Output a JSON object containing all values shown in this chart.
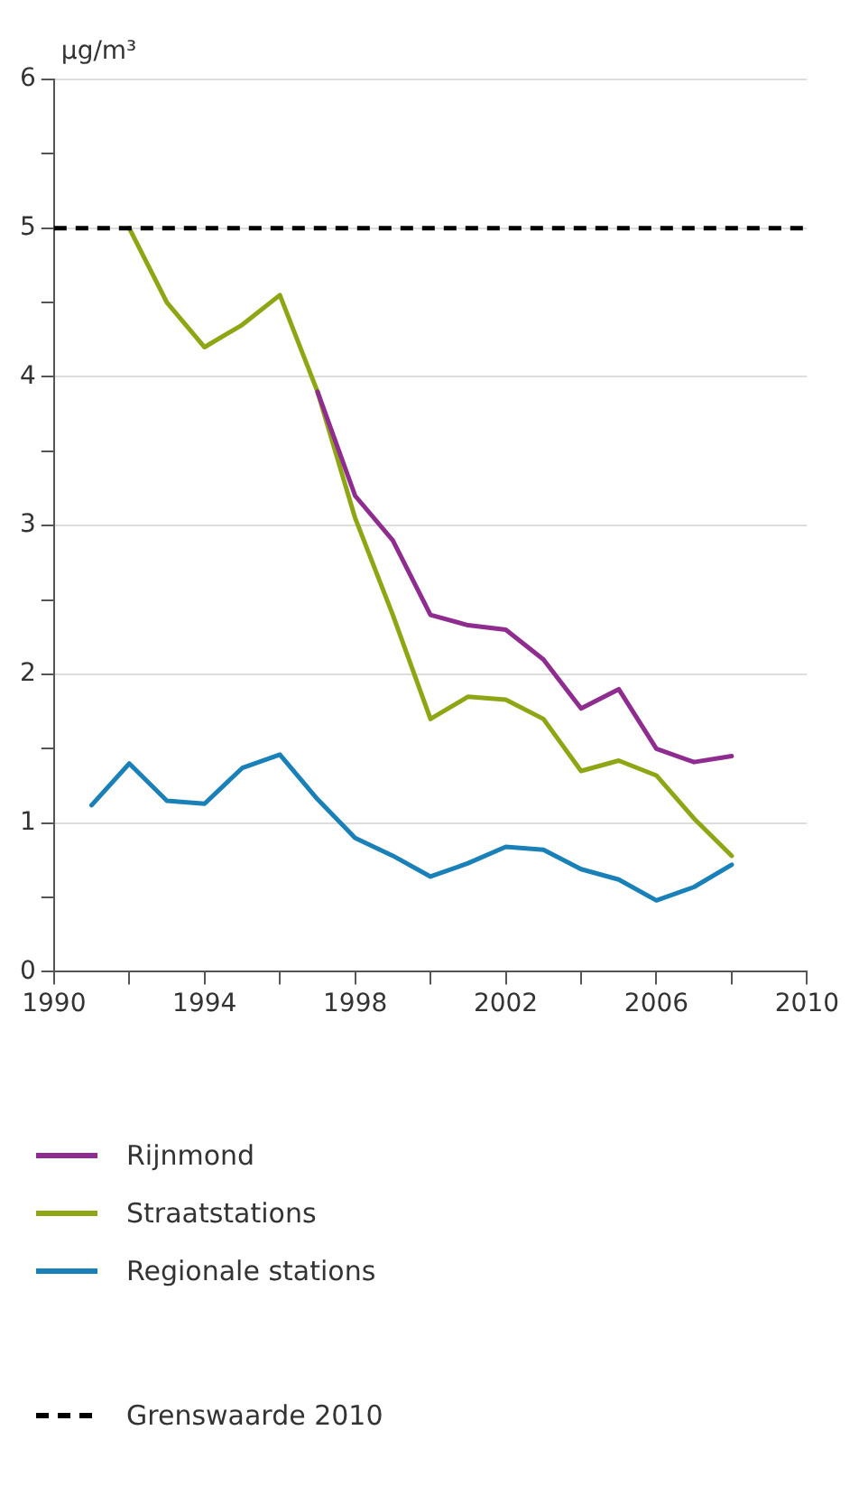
{
  "chart_data": {
    "type": "line",
    "ylabel": "µg/m³",
    "xlim": [
      1990,
      2010
    ],
    "ylim": [
      0,
      6
    ],
    "xticks": [
      1990,
      {
        "value": 1992,
        "label": null
      },
      1994,
      {
        "value": 1996,
        "label": null
      },
      1998,
      {
        "value": 2000,
        "label": null
      },
      2002,
      {
        "value": 2004,
        "label": null
      },
      2006,
      {
        "value": 2008,
        "label": null
      },
      2010
    ],
    "yticks": [
      0,
      {
        "value": 0.5,
        "label": null
      },
      1,
      {
        "value": 1.5,
        "label": null
      },
      2,
      {
        "value": 2.5,
        "label": null
      },
      3,
      {
        "value": 3.5,
        "label": null
      },
      4,
      {
        "value": 4.5,
        "label": null
      },
      5,
      {
        "value": 5.5,
        "label": null
      },
      6
    ],
    "grid": "y",
    "legend": "bottom",
    "marker": "none",
    "line_style": "solid",
    "series": [
      {
        "name": "Rijnmond",
        "color": "#8e2c90",
        "x": [
          1997,
          1998,
          1999,
          2000,
          2001,
          2002,
          2003,
          2004,
          2005,
          2006,
          2007,
          2008
        ],
        "values": [
          3.9,
          3.2,
          2.9,
          2.4,
          2.33,
          2.3,
          2.1,
          1.77,
          1.9,
          1.5,
          1.41,
          1.45
        ]
      },
      {
        "name": "Straatstations",
        "color": "#8fa614",
        "x": [
          1992,
          1993,
          1994,
          1995,
          1996,
          1997,
          1998,
          1999,
          2000,
          2001,
          2002,
          2003,
          2004,
          2005,
          2006,
          2007,
          2008
        ],
        "values": [
          5.0,
          4.5,
          4.2,
          4.35,
          4.55,
          3.9,
          3.05,
          2.4,
          1.7,
          1.85,
          1.83,
          1.7,
          1.35,
          1.42,
          1.32,
          1.03,
          0.78
        ]
      },
      {
        "name": "Regionale stations",
        "color": "#1a80b8",
        "x": [
          1991,
          1992,
          1993,
          1994,
          1995,
          1996,
          1997,
          1998,
          1999,
          2000,
          2001,
          2002,
          2003,
          2004,
          2005,
          2006,
          2007,
          2008
        ],
        "values": [
          1.12,
          1.4,
          1.15,
          1.13,
          1.37,
          1.46,
          1.16,
          0.9,
          0.78,
          0.64,
          0.73,
          0.84,
          0.82,
          0.69,
          0.62,
          0.48,
          0.57,
          0.72
        ]
      }
    ],
    "ref_lines": [
      {
        "axis": "y",
        "value": 5,
        "label": "Grenswaarde 2010",
        "color": "#000000",
        "line_style": "dashed"
      }
    ]
  }
}
